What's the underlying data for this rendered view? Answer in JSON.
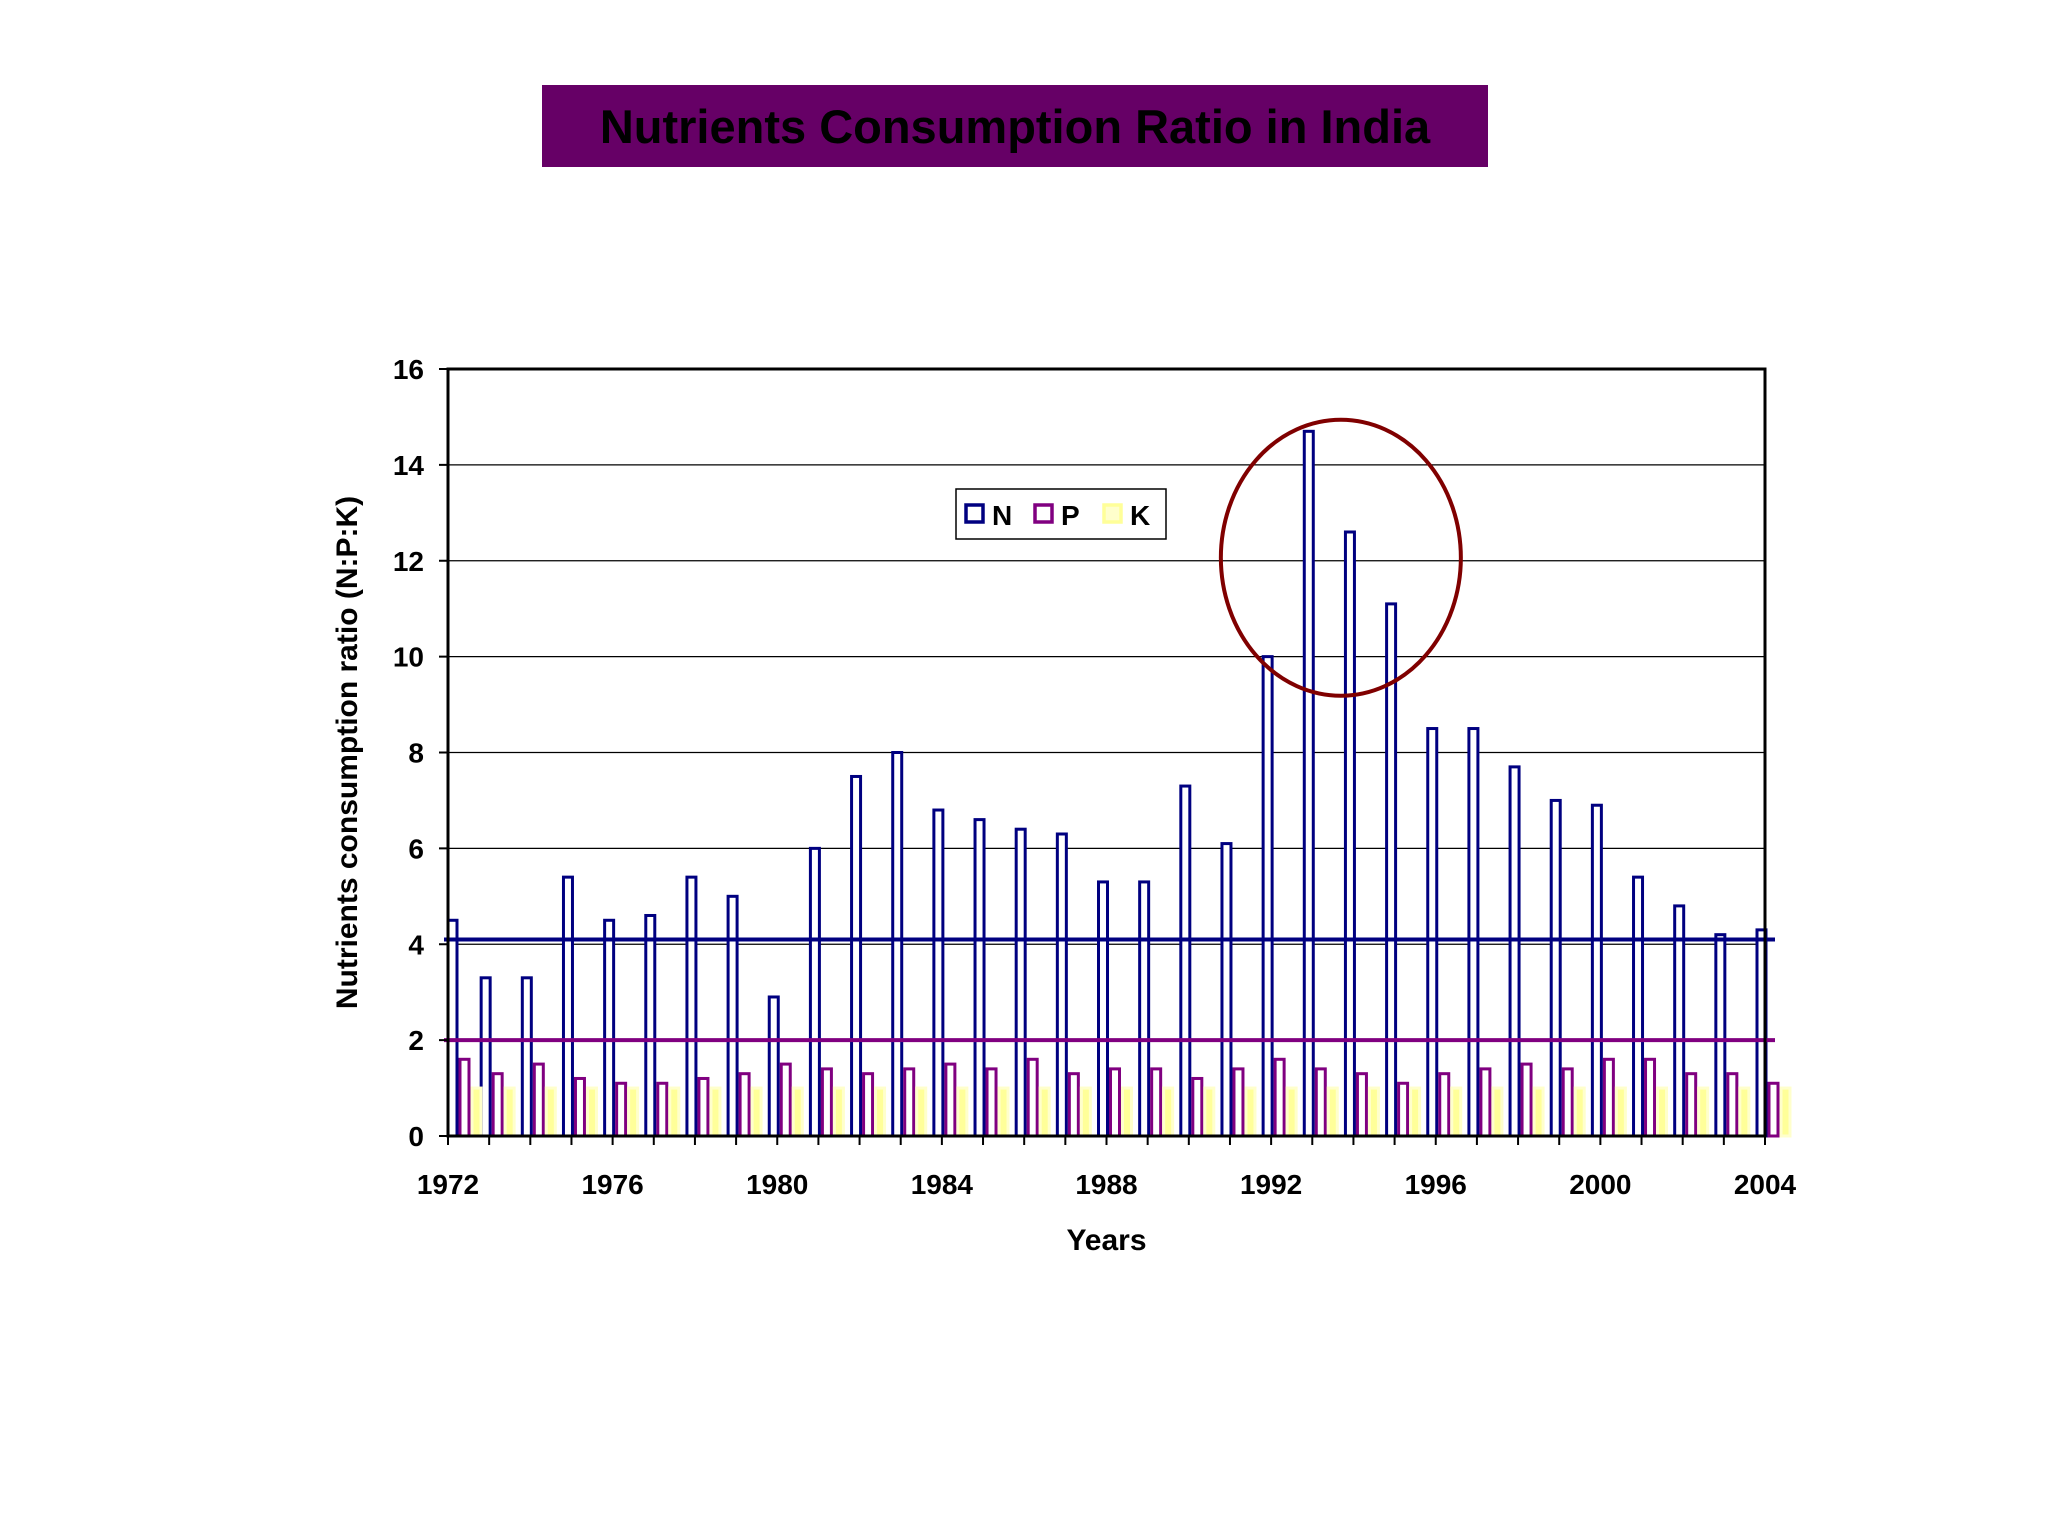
{
  "slide": {
    "title": "Nutrients Consumption Ratio in India"
  },
  "colors": {
    "title_bg": "#660066",
    "N": "#000080",
    "P": "#800080",
    "K": "#FFFF99",
    "highlight_circle": "#800000",
    "ref_line_N": "#000080",
    "ref_line_P": "#800080"
  },
  "chart_data": {
    "type": "bar",
    "xlabel": "Years",
    "ylabel": "Nutrients consumption ratio (N:P:K)",
    "ylim": [
      0,
      16
    ],
    "y_ticks": [
      0,
      2,
      4,
      6,
      8,
      10,
      12,
      14,
      16
    ],
    "x_tick_labels": [
      "1972",
      "1976",
      "1980",
      "1984",
      "1988",
      "1992",
      "1996",
      "2000",
      "2004"
    ],
    "categories": [
      1972,
      1973,
      1974,
      1975,
      1976,
      1977,
      1978,
      1979,
      1980,
      1981,
      1982,
      1983,
      1984,
      1985,
      1986,
      1987,
      1988,
      1989,
      1990,
      1991,
      1992,
      1993,
      1994,
      1995,
      1996,
      1997,
      1998,
      1999,
      2000,
      2001,
      2002,
      2003,
      2004
    ],
    "series": [
      {
        "name": "N",
        "values": [
          4.5,
          3.3,
          3.3,
          5.4,
          4.5,
          4.6,
          5.4,
          5.0,
          2.9,
          6.0,
          7.5,
          8.0,
          6.8,
          6.6,
          6.4,
          6.3,
          5.3,
          5.3,
          7.3,
          6.1,
          10.0,
          14.7,
          12.6,
          11.1,
          8.5,
          8.5,
          7.7,
          7.0,
          6.9,
          5.4,
          4.8,
          4.2,
          4.3
        ]
      },
      {
        "name": "P",
        "values": [
          1.6,
          1.3,
          1.5,
          1.2,
          1.1,
          1.1,
          1.2,
          1.3,
          1.5,
          1.4,
          1.3,
          1.4,
          1.5,
          1.4,
          1.6,
          1.3,
          1.4,
          1.4,
          1.2,
          1.4,
          1.6,
          1.4,
          1.3,
          1.1,
          1.3,
          1.4,
          1.5,
          1.4,
          1.6,
          1.6,
          1.3,
          1.3,
          1.1
        ]
      },
      {
        "name": "K",
        "values": [
          1,
          1,
          1,
          1,
          1,
          1,
          1,
          1,
          1,
          1,
          1,
          1,
          1,
          1,
          1,
          1,
          1,
          1,
          1,
          1,
          1,
          1,
          1,
          1,
          1,
          1,
          1,
          1,
          1,
          1,
          1,
          1,
          1
        ]
      }
    ],
    "reference_lines": [
      {
        "series": "N",
        "value": 4.1
      },
      {
        "series": "P",
        "value": 2.0
      }
    ],
    "highlight": {
      "shape": "ellipse",
      "years": [
        1992,
        1995
      ],
      "center_value": 12
    },
    "grid": true,
    "legend": "top-center"
  }
}
